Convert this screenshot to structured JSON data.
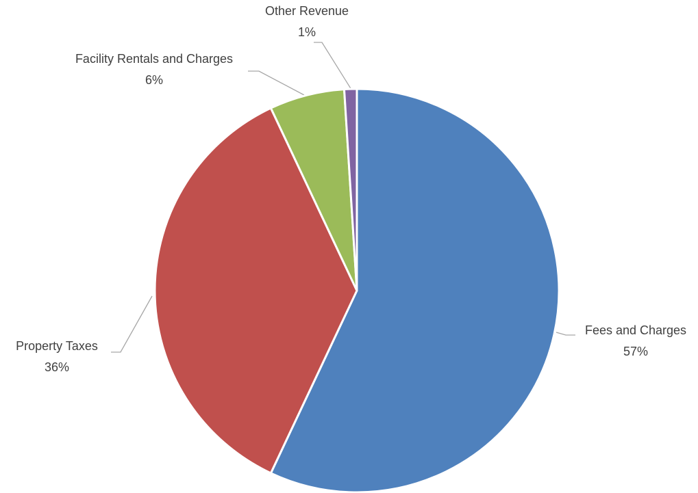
{
  "chart_data": {
    "type": "pie",
    "categories": [
      "Fees and Charges",
      "Property Taxes",
      "Facility Rentals and Charges",
      "Other Revenue"
    ],
    "values": [
      57,
      36,
      6,
      1
    ],
    "value_labels": [
      "57%",
      "36%",
      "6%",
      "1%"
    ],
    "colors": [
      "#4f81bd",
      "#c0504d",
      "#9bbb59",
      "#8064a2"
    ]
  }
}
